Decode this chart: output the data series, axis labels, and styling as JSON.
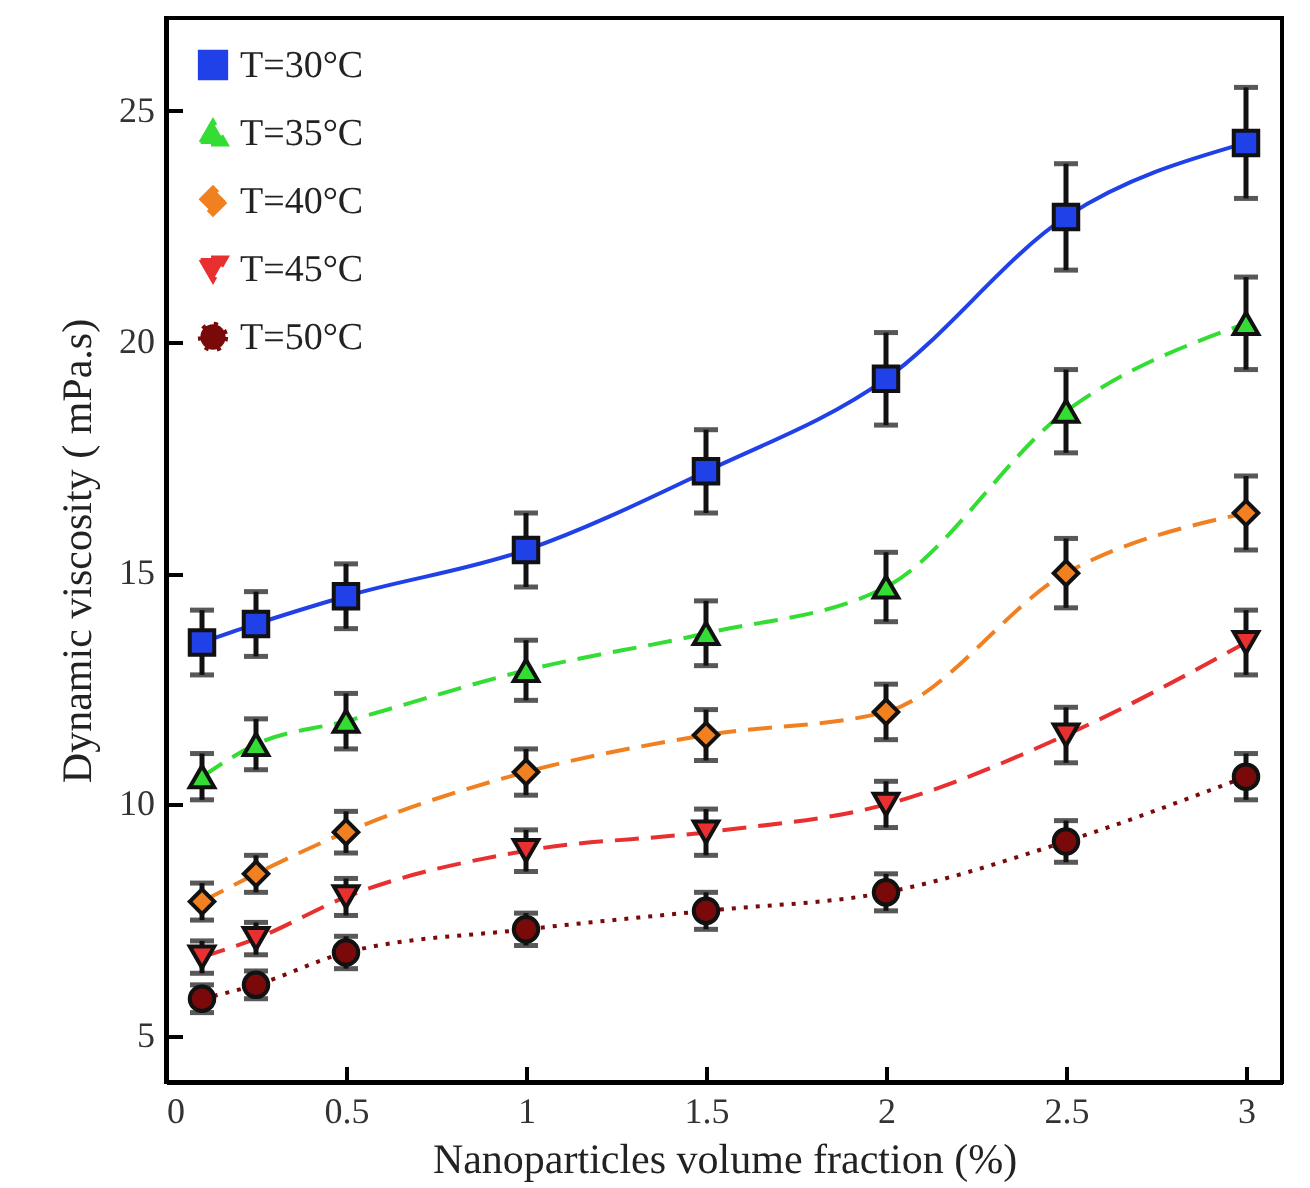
{
  "chart_data": {
    "type": "line",
    "xlabel": "Nanoparticles volume fraction (%)",
    "ylabel": "Dynamic viscosity ( mPa.s)",
    "x": [
      0.1,
      0.25,
      0.5,
      1,
      1.5,
      2,
      2.5,
      3
    ],
    "series": [
      {
        "name": "T=30°C",
        "color": "#2040e8",
        "marker": "square",
        "line_style": "solid",
        "values": [
          13.5,
          13.9,
          14.5,
          15.5,
          17.2,
          19.2,
          22.7,
          24.3
        ],
        "errors": [
          0.7,
          0.7,
          0.7,
          0.8,
          0.9,
          1.0,
          1.15,
          1.2
        ]
      },
      {
        "name": "T=35°C",
        "color": "#33dd33",
        "marker": "triangle",
        "line_style": "dashed",
        "values": [
          10.6,
          11.3,
          11.8,
          12.9,
          13.7,
          14.7,
          18.5,
          20.4
        ],
        "errors": [
          0.5,
          0.55,
          0.6,
          0.65,
          0.7,
          0.75,
          0.9,
          1.0
        ]
      },
      {
        "name": "T=40°C",
        "color": "#f08020",
        "marker": "diamond",
        "line_style": "dashed",
        "values": [
          7.9,
          8.5,
          9.4,
          10.7,
          11.5,
          12.0,
          15.0,
          16.3
        ],
        "errors": [
          0.4,
          0.4,
          0.45,
          0.5,
          0.55,
          0.6,
          0.75,
          0.8
        ]
      },
      {
        "name": "T=45°C",
        "color": "#e83030",
        "marker": "triangle-down",
        "line_style": "dashed",
        "values": [
          6.7,
          7.1,
          8.0,
          9.0,
          9.4,
          10.0,
          11.5,
          13.5
        ],
        "errors": [
          0.35,
          0.35,
          0.4,
          0.45,
          0.5,
          0.5,
          0.6,
          0.7
        ]
      },
      {
        "name": "T=50°C",
        "color": "#7a0a0a",
        "marker": "circle",
        "line_style": "dotted",
        "values": [
          5.8,
          6.1,
          6.8,
          7.3,
          7.7,
          8.1,
          9.2,
          10.6
        ],
        "errors": [
          0.3,
          0.3,
          0.35,
          0.35,
          0.4,
          0.4,
          0.45,
          0.5
        ]
      }
    ],
    "xlim": [
      0,
      3.1
    ],
    "xticks": [
      0,
      0.5,
      1,
      1.5,
      2,
      2.5,
      3
    ],
    "ylim": [
      4,
      27
    ],
    "yticks": [
      5,
      10,
      15,
      20,
      25
    ],
    "legend": "top left",
    "grid": false
  }
}
